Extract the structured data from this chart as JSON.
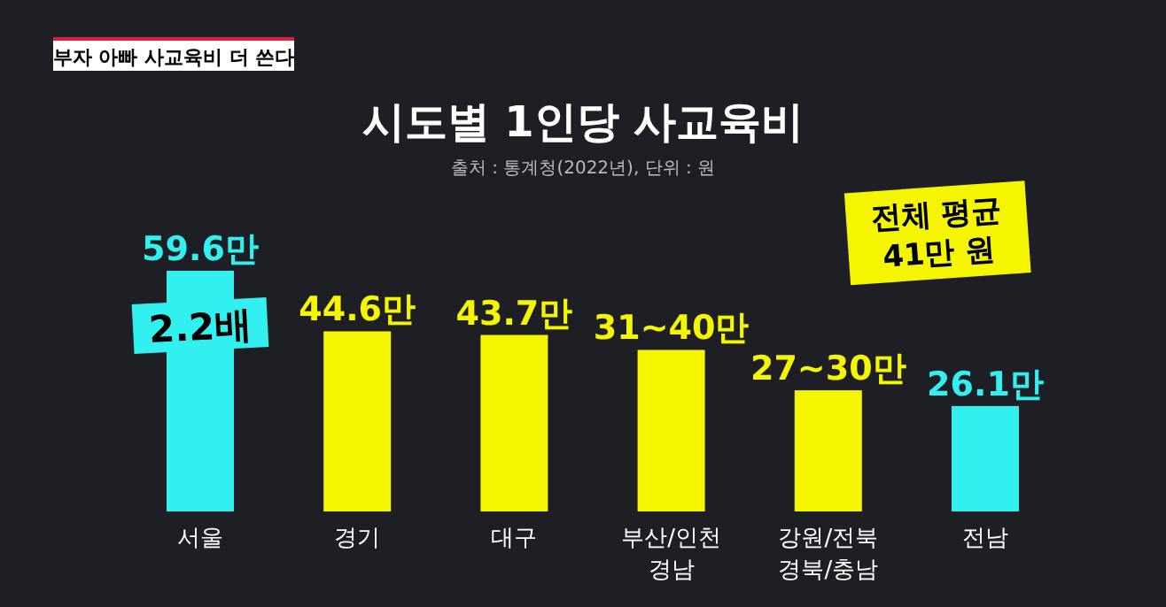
{
  "chart_data": {
    "type": "bar",
    "title": "시도별 1인당 사교육비",
    "subtitle": "출처 : 통계청(2022년), 단위 : 원",
    "categories": [
      "서울",
      "경기",
      "대구",
      "부산/인천\n경남",
      "강원/전북\n경북/충남",
      "전남"
    ],
    "values": [
      59.6,
      44.6,
      43.7,
      40,
      30,
      26.1
    ],
    "colors": [
      "#33f0f0",
      "#f5f500",
      "#f5f500",
      "#f5f500",
      "#f5f500",
      "#33f0f0"
    ],
    "value_labels": [
      "59.6만",
      "44.6만",
      "43.7만",
      "31~40만",
      "27~30만",
      "26.1만"
    ],
    "annotations": [
      "부자 아빠 사교육비 더 쓴다",
      "2.2배",
      "전체 평균\n41만 원"
    ]
  }
}
